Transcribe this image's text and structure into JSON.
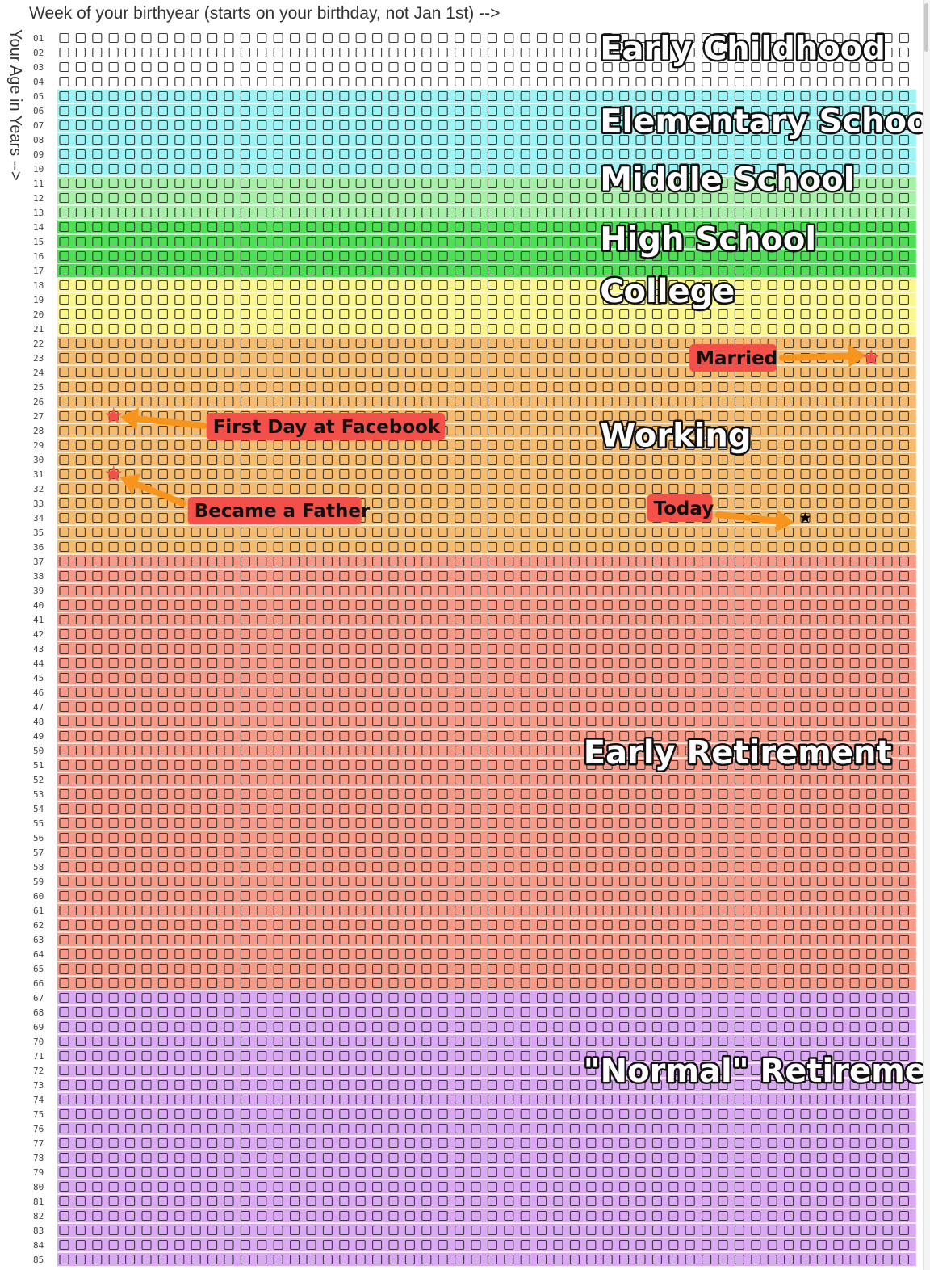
{
  "chart_data": {
    "type": "heatmap",
    "title": "",
    "xlabel": "Week of your birthyear (starts on your birthday, not Jan 1st) -->",
    "ylabel": "Your Age in Years -->",
    "weeks_per_year": 52,
    "age_range": [
      1,
      85
    ],
    "row_labels": [
      "01",
      "02",
      "03",
      "04",
      "05",
      "06",
      "07",
      "08",
      "09",
      "10",
      "11",
      "12",
      "13",
      "14",
      "15",
      "16",
      "17",
      "18",
      "19",
      "20",
      "21",
      "22",
      "23",
      "24",
      "25",
      "26",
      "27",
      "28",
      "29",
      "30",
      "31",
      "32",
      "33",
      "34",
      "35",
      "36",
      "37",
      "38",
      "39",
      "40",
      "41",
      "42",
      "43",
      "44",
      "45",
      "46",
      "47",
      "48",
      "49",
      "50",
      "51",
      "52",
      "53",
      "54",
      "55",
      "56",
      "57",
      "58",
      "59",
      "60",
      "61",
      "62",
      "63",
      "64",
      "65",
      "66",
      "67",
      "68",
      "69",
      "70",
      "71",
      "72",
      "73",
      "74",
      "75",
      "76",
      "77",
      "78",
      "79",
      "80",
      "81",
      "82",
      "83",
      "84",
      "85"
    ],
    "stages": [
      {
        "name": "Early Childhood",
        "from_age": 1,
        "to_age": 4,
        "color": "#ffffff"
      },
      {
        "name": "Elementary School",
        "from_age": 5,
        "to_age": 10,
        "color": "#9ef3f5"
      },
      {
        "name": "Middle School",
        "from_age": 11,
        "to_age": 13,
        "color": "#a7f0a8"
      },
      {
        "name": "High School",
        "from_age": 14,
        "to_age": 17,
        "color": "#4fdf57"
      },
      {
        "name": "College",
        "from_age": 18,
        "to_age": 21,
        "color": "#fbf68e"
      },
      {
        "name": "Working",
        "from_age": 22,
        "to_age": 36,
        "color": "#f5bb6f"
      },
      {
        "name": "Early Retirement",
        "from_age": 37,
        "to_age": 66,
        "color": "#f79a87"
      },
      {
        "name": "\"Normal\" Retirement",
        "from_age": 67,
        "to_age": 85,
        "color": "#dba9f4"
      }
    ],
    "events": [
      {
        "label": "Married",
        "age": 23,
        "week": 50,
        "marker": "red-star"
      },
      {
        "label": "First Day at Facebook",
        "age": 27,
        "week": 4,
        "marker": "red-star"
      },
      {
        "label": "Became a Father",
        "age": 31,
        "week": 4,
        "marker": "red-star"
      },
      {
        "label": "Today",
        "age": 34,
        "week": 46,
        "marker": "black-star"
      }
    ],
    "colors": {
      "marker_red": "#f4504a",
      "callout_bg": "#f4504a",
      "arrow": "#f7941d",
      "today_marker": "#000000"
    }
  }
}
